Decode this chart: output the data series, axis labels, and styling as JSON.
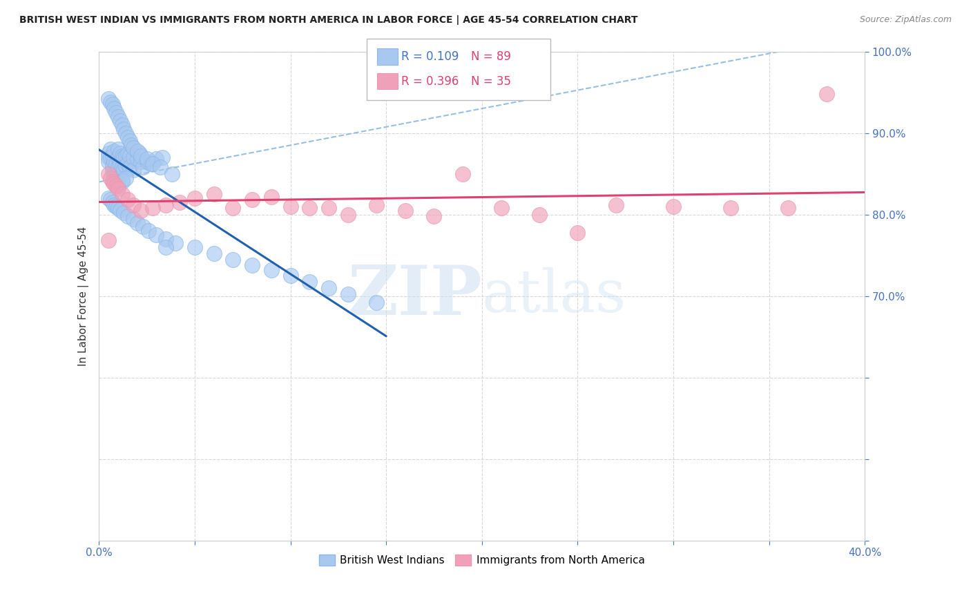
{
  "title": "BRITISH WEST INDIAN VS IMMIGRANTS FROM NORTH AMERICA IN LABOR FORCE | AGE 45-54 CORRELATION CHART",
  "source": "Source: ZipAtlas.com",
  "ylabel": "In Labor Force | Age 45-54",
  "xlim": [
    0.0,
    0.4
  ],
  "ylim": [
    0.4,
    1.0
  ],
  "legend_R_blue": "R = 0.109",
  "legend_N_blue": "N = 89",
  "legend_R_pink": "R = 0.396",
  "legend_N_pink": "N = 35",
  "blue_color": "#a8c8f0",
  "pink_color": "#f0a0b8",
  "blue_line_color": "#2060b0",
  "pink_line_color": "#e04070",
  "background_color": "#ffffff",
  "grid_color": "#d8d8d8",
  "blue_x": [
    0.005,
    0.005,
    0.005,
    0.006,
    0.006,
    0.007,
    0.007,
    0.007,
    0.008,
    0.008,
    0.008,
    0.009,
    0.009,
    0.01,
    0.01,
    0.01,
    0.01,
    0.011,
    0.011,
    0.012,
    0.012,
    0.012,
    0.013,
    0.013,
    0.014,
    0.014,
    0.015,
    0.015,
    0.016,
    0.016,
    0.018,
    0.018,
    0.02,
    0.021,
    0.022,
    0.023,
    0.025,
    0.027,
    0.03,
    0.033,
    0.005,
    0.006,
    0.007,
    0.008,
    0.009,
    0.01,
    0.011,
    0.012,
    0.013,
    0.014,
    0.015,
    0.016,
    0.017,
    0.018,
    0.02,
    0.022,
    0.025,
    0.028,
    0.032,
    0.038,
    0.005,
    0.006,
    0.007,
    0.008,
    0.009,
    0.01,
    0.011,
    0.013,
    0.015,
    0.018,
    0.02,
    0.023,
    0.026,
    0.03,
    0.035,
    0.04,
    0.05,
    0.06,
    0.07,
    0.08,
    0.09,
    0.1,
    0.11,
    0.12,
    0.13,
    0.145,
    0.035,
    0.01,
    0.012,
    0.014
  ],
  "blue_y": [
    0.875,
    0.87,
    0.865,
    0.88,
    0.87,
    0.855,
    0.872,
    0.86,
    0.878,
    0.865,
    0.85,
    0.862,
    0.848,
    0.88,
    0.87,
    0.858,
    0.845,
    0.875,
    0.862,
    0.872,
    0.858,
    0.842,
    0.87,
    0.856,
    0.872,
    0.86,
    0.875,
    0.862,
    0.872,
    0.858,
    0.87,
    0.855,
    0.868,
    0.875,
    0.865,
    0.858,
    0.865,
    0.862,
    0.868,
    0.87,
    0.942,
    0.938,
    0.935,
    0.93,
    0.925,
    0.92,
    0.915,
    0.91,
    0.905,
    0.9,
    0.895,
    0.89,
    0.885,
    0.882,
    0.878,
    0.872,
    0.868,
    0.862,
    0.858,
    0.85,
    0.82,
    0.818,
    0.815,
    0.812,
    0.81,
    0.808,
    0.806,
    0.802,
    0.798,
    0.795,
    0.79,
    0.785,
    0.78,
    0.775,
    0.77,
    0.765,
    0.76,
    0.752,
    0.745,
    0.738,
    0.732,
    0.725,
    0.718,
    0.71,
    0.702,
    0.692,
    0.76,
    0.835,
    0.84,
    0.845
  ],
  "pink_x": [
    0.005,
    0.006,
    0.007,
    0.008,
    0.009,
    0.01,
    0.012,
    0.015,
    0.018,
    0.022,
    0.028,
    0.035,
    0.042,
    0.05,
    0.06,
    0.07,
    0.08,
    0.09,
    0.1,
    0.11,
    0.12,
    0.13,
    0.145,
    0.16,
    0.175,
    0.19,
    0.21,
    0.23,
    0.25,
    0.27,
    0.3,
    0.33,
    0.36,
    0.005,
    0.38
  ],
  "pink_y": [
    0.85,
    0.845,
    0.84,
    0.838,
    0.835,
    0.832,
    0.825,
    0.818,
    0.812,
    0.805,
    0.808,
    0.812,
    0.815,
    0.82,
    0.825,
    0.808,
    0.818,
    0.822,
    0.81,
    0.808,
    0.808,
    0.8,
    0.812,
    0.805,
    0.798,
    0.85,
    0.808,
    0.8,
    0.778,
    0.812,
    0.81,
    0.808,
    0.808,
    0.768,
    0.948
  ]
}
